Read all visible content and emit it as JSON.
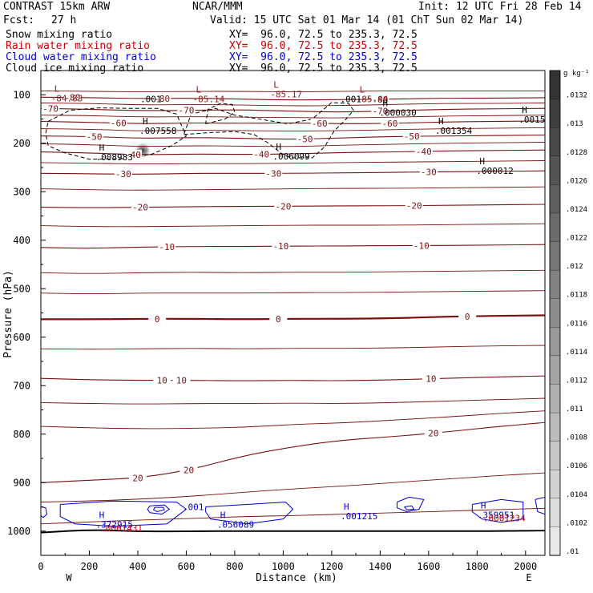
{
  "header": {
    "model": "CONTRAST 15km ARW",
    "center": "NCAR/MMM",
    "init": "Init: 12 UTC Fri 28 Feb 14",
    "fcst_label": "Fcst:",
    "fcst_value": "27 h",
    "valid": "Valid: 15 UTC Sat 01 Mar 14 (01 ChT Sun 02 Mar 14)",
    "fields": [
      {
        "name": "Snow mixing ratio",
        "xy": "XY=  96.0, 72.5 to 235.3, 72.5",
        "color": "#000000"
      },
      {
        "name": "Rain water mixing ratio",
        "xy": "XY=  96.0, 72.5 to 235.3, 72.5",
        "color": "#cc0000"
      },
      {
        "name": "Cloud water mixing ratio",
        "xy": "XY=  96.0, 72.5 to 235.3, 72.5",
        "color": "#0000cc"
      },
      {
        "name": "Cloud ice mixing ratio",
        "xy": "XY=  96.0, 72.5 to 235.3, 72.5",
        "color": "#000000"
      }
    ]
  },
  "chart_data": {
    "type": "contour-cross-section",
    "xlabel": "Distance (km)",
    "ylabel": "Pressure (hPa)",
    "xlim": [
      0,
      2080
    ],
    "ylim": [
      1050,
      50
    ],
    "x_ticks": [
      "0",
      "200",
      "400",
      "600",
      "800",
      "1000",
      "1200",
      "1400",
      "1600",
      "1800",
      "2000"
    ],
    "y_ticks": [
      "100",
      "200",
      "300",
      "400",
      "500",
      "600",
      "700",
      "800",
      "900",
      "1000"
    ],
    "x_end_labels": {
      "left": "W",
      "right": "E"
    },
    "temperature_contours": [
      {
        "value": -80,
        "label": "-80",
        "p": [
          105,
          106,
          108,
          107,
          109,
          111,
          110,
          109,
          107,
          107,
          106
        ]
      },
      {
        "value": -70,
        "label": "-70",
        "p": [
          128,
          130,
          133,
          132,
          131,
          134,
          136,
          133,
          130,
          129,
          128
        ]
      },
      {
        "value": -60,
        "label": "-60",
        "p": [
          155,
          157,
          160,
          158,
          159,
          158,
          160,
          159,
          156,
          155,
          154
        ]
      },
      {
        "value": -50,
        "label": "-50",
        "p": [
          185,
          186,
          190,
          188,
          190,
          192,
          189,
          186,
          185,
          184,
          183
        ]
      },
      {
        "value": -40,
        "label": "-40",
        "p": [
          218,
          220,
          224,
          222,
          223,
          222,
          219,
          218,
          216,
          215,
          214
        ]
      },
      {
        "value": -30,
        "label": "-30",
        "p": [
          262,
          263,
          264,
          262,
          262,
          262,
          261,
          260,
          259,
          258,
          257
        ]
      },
      {
        "value": -20,
        "label": "-20",
        "p": [
          332,
          333,
          332,
          331,
          330,
          330,
          329,
          329,
          328,
          327,
          326
        ]
      },
      {
        "value": -10,
        "label": "-10",
        "p": [
          415,
          417,
          414,
          413,
          413,
          412,
          412,
          411,
          411,
          410,
          409
        ]
      },
      {
        "value": 0,
        "label": "0",
        "p": [
          563,
          563,
          562,
          562,
          563,
          562,
          562,
          561,
          558,
          556,
          555
        ]
      },
      {
        "value": 10,
        "label": "10",
        "p": [
          685,
          688,
          689,
          689,
          690,
          689,
          690,
          688,
          685,
          682,
          680
        ]
      },
      {
        "value": 20,
        "label": "20",
        "p": [
          900,
          895,
          890,
          873,
          845,
          826,
          812,
          805,
          796,
          785,
          776
        ]
      }
    ],
    "temperature_minor_contours": [
      {
        "p": [
          92,
          93,
          94,
          93,
          93,
          94,
          93,
          92,
          92,
          92,
          92
        ]
      },
      {
        "p": [
          117,
          118,
          121,
          120,
          121,
          123,
          122,
          120,
          118,
          118,
          117
        ]
      },
      {
        "p": [
          142,
          143,
          146,
          145,
          146,
          147,
          148,
          146,
          144,
          143,
          142
        ]
      },
      {
        "p": [
          170,
          171,
          175,
          173,
          174,
          175,
          174,
          172,
          170,
          169,
          168
        ]
      },
      {
        "p": [
          201,
          203,
          207,
          205,
          206,
          207,
          204,
          202,
          200,
          199,
          198
        ]
      },
      {
        "p": [
          240,
          241,
          243,
          242,
          242,
          241,
          240,
          239,
          238,
          237,
          236
        ]
      },
      {
        "p": [
          294,
          296,
          297,
          296,
          295,
          294,
          293,
          293,
          292,
          291,
          290
        ]
      },
      {
        "p": [
          370,
          372,
          372,
          371,
          370,
          369,
          369,
          369,
          368,
          367,
          366
        ]
      },
      {
        "p": [
          467,
          469,
          467,
          466,
          467,
          466,
          466,
          465,
          464,
          463,
          462
        ]
      },
      {
        "p": [
          509,
          511,
          509,
          509,
          509,
          508,
          508,
          507,
          506,
          505,
          504
        ]
      },
      {
        "p": [
          624,
          625,
          624,
          623,
          624,
          623,
          623,
          622,
          620,
          618,
          617
        ]
      },
      {
        "p": [
          735,
          737,
          738,
          737,
          737,
          736,
          737,
          735,
          732,
          729,
          726
        ]
      },
      {
        "p": [
          784,
          787,
          789,
          788,
          786,
          780,
          777,
          771,
          765,
          758,
          752
        ]
      },
      {
        "p": [
          940,
          938,
          934,
          928,
          920,
          913,
          907,
          900,
          893,
          886,
          880
        ]
      },
      {
        "p": [
          985,
          981,
          977,
          974,
          970,
          968,
          965,
          962,
          959,
          956,
          953
        ]
      }
    ],
    "surface_pressure": {
      "p": [
        1003,
        997,
        1001,
        1000,
        1000,
        1000,
        1000,
        1000,
        1000,
        1000,
        999
      ]
    },
    "extrema_labels": [
      {
        "type": "L",
        "value": "-84.83",
        "x": 55,
        "pl": 100,
        "color": "#8b1a1a"
      },
      {
        "type": "L",
        "value": "-85.14",
        "x": 640,
        "pl": 102,
        "color": "#8b1a1a"
      },
      {
        "type": "L",
        "value": "-85.17",
        "x": 960,
        "pl": 92,
        "color": "#8b1a1a"
      },
      {
        "type": "L",
        "value": "-85.44",
        "x": 1315,
        "pl": 102,
        "color": "#8b1a1a"
      },
      {
        "type": "H",
        "value": ".007558",
        "x": 420,
        "pl": 167,
        "color": "#000000"
      },
      {
        "type": "H",
        "value": ".008983",
        "x": 240,
        "pl": 222,
        "color": "#000000"
      },
      {
        "type": "H",
        "value": ".006099",
        "x": 970,
        "pl": 220,
        "color": "#000000"
      },
      {
        "type": "H",
        "value": ".000030",
        "x": 1410,
        "pl": 130,
        "color": "#000000"
      },
      {
        "type": "H",
        "value": ".001354",
        "x": 1640,
        "pl": 167,
        "color": "#000000"
      },
      {
        "type": "H",
        "value": ".0015",
        "x": 1985,
        "pl": 144,
        "color": "#000000"
      },
      {
        "type": "H",
        "value": ".000012",
        "x": 1810,
        "pl": 250,
        "color": "#000000"
      },
      {
        "type": "H",
        "value": ".372915",
        "x": 240,
        "pl": 980,
        "color": "#0000cc"
      },
      {
        "type": "H",
        "value": ".056089",
        "x": 740,
        "pl": 980,
        "color": "#0000cc"
      },
      {
        "type": "H",
        "value": ".001215",
        "x": 1250,
        "pl": 962,
        "color": "#0000cc"
      },
      {
        "type": "H",
        "value": ".359951",
        "x": 1815,
        "pl": 960,
        "color": "#0000cc"
      }
    ],
    "other_labels": [
      {
        "value": ".001",
        "x": 410,
        "pl": 115,
        "color": "#000000"
      },
      {
        "value": ".001",
        "x": 1235,
        "pl": 115,
        "color": "#000000"
      },
      {
        "value": ".001",
        "x": 585,
        "pl": 957,
        "color": "#0000cc"
      },
      {
        "value": ".0001431",
        "x": 245,
        "pl": 1000,
        "color": "#cc0000"
      },
      {
        "value": ".0001234",
        "x": 1825,
        "pl": 980,
        "color": "#cc0000"
      }
    ],
    "colorbar": {
      "unit": "g kg⁻¹",
      "labels": [
        ".0132",
        ".013",
        ".0128",
        ".0126",
        ".0124",
        ".0122",
        ".012",
        ".0118",
        ".0116",
        ".0114",
        ".0112",
        ".011",
        ".0108",
        ".0106",
        ".0104",
        ".0102",
        ".01"
      ],
      "colors": [
        "#333333",
        "#3e3e3e",
        "#494949",
        "#545454",
        "#5f5f5f",
        "#6b6b6b",
        "#767676",
        "#828282",
        "#8d8d8d",
        "#999999",
        "#a4a4a4",
        "#b0b0b0",
        "#bbbbbb",
        "#c6c6c6",
        "#d1d1d1",
        "#dcdcdc",
        "#e8e8e8"
      ]
    },
    "colors": {
      "temperature": "#7a1010",
      "snow": "#000000",
      "cloud_water": "#0000cc",
      "rain": "#cc0000"
    }
  }
}
